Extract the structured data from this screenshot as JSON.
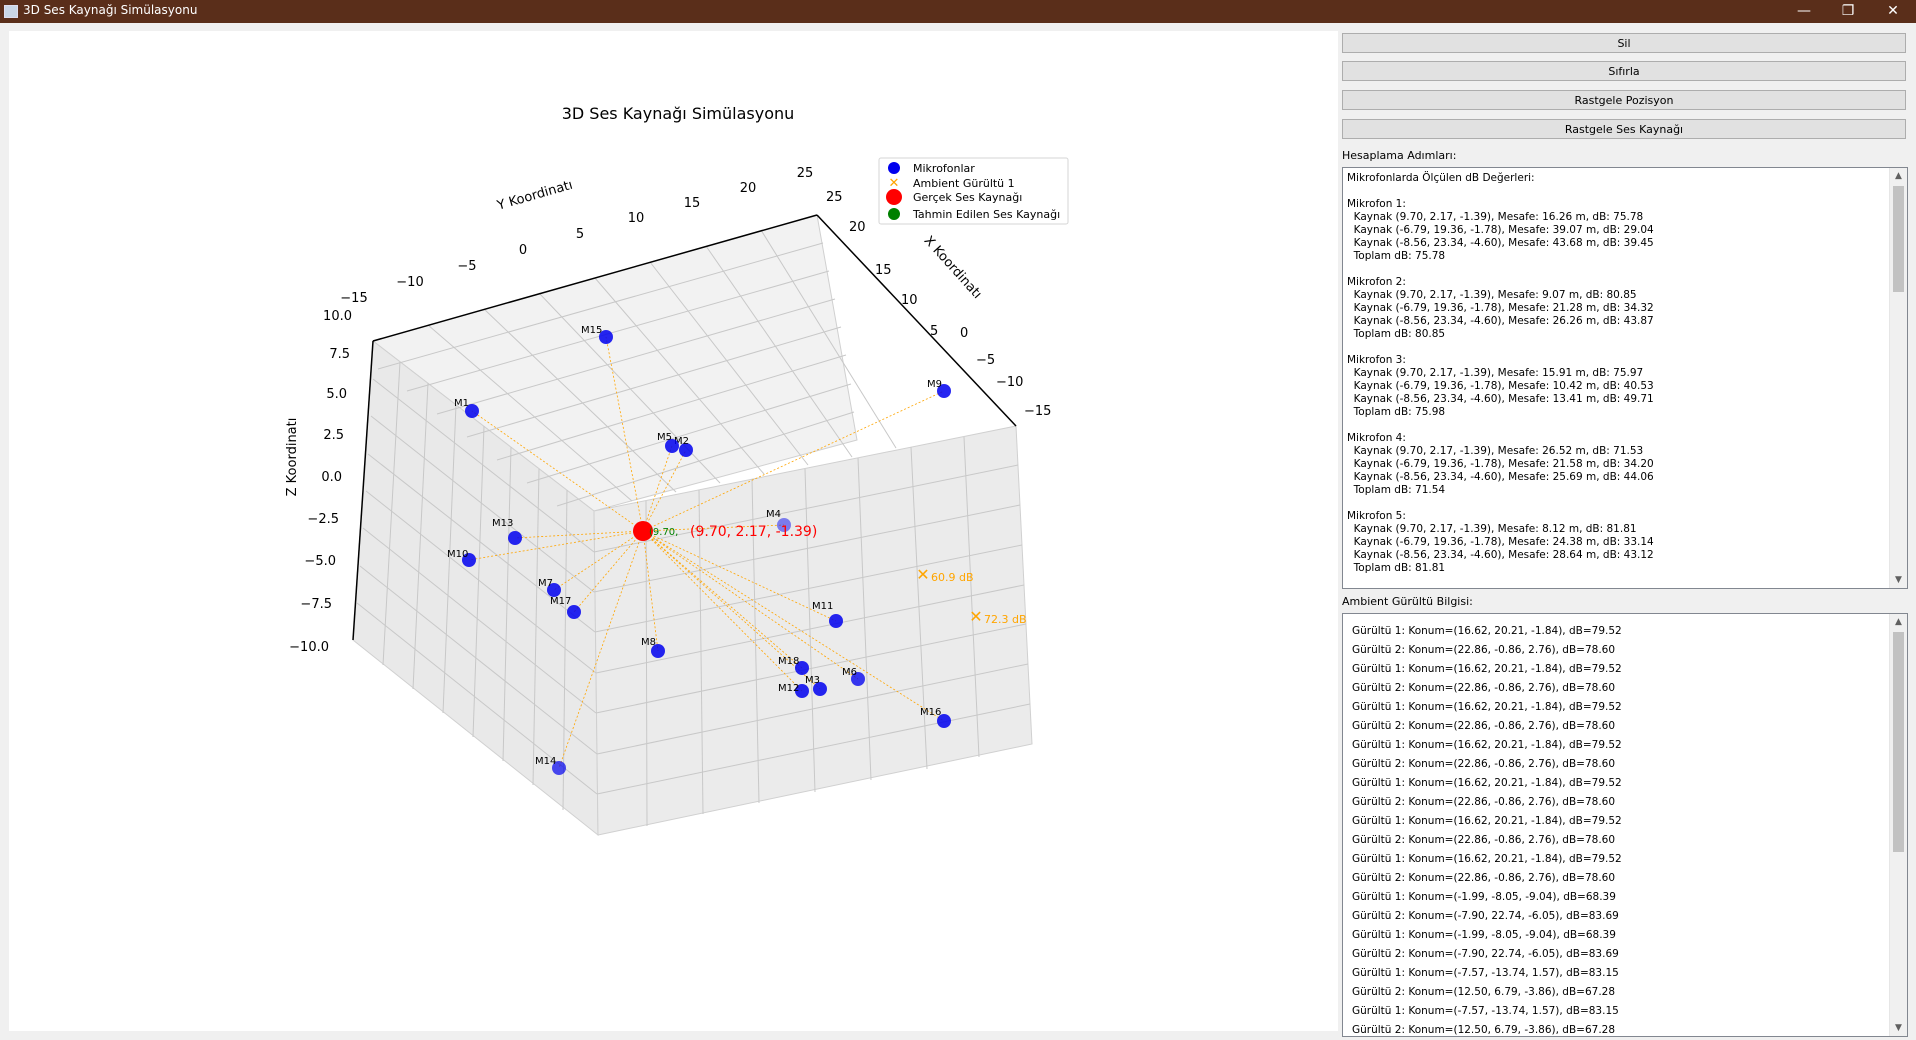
{
  "window": {
    "title": "3D Ses Kaynağı Simülasyonu",
    "controls": [
      "—",
      "❐",
      "✕"
    ]
  },
  "buttons": {
    "sil": "Sil",
    "sifirla": "Sıfırla",
    "rastgele_pozisyon": "Rastgele Pozisyon",
    "rastgele_ses": "Rastgele Ses Kaynağı"
  },
  "labels": {
    "hesaplama": "Hesaplama Adımları:",
    "ambient": "Ambient Gürültü Bilgisi:"
  },
  "calc_text": "Mikrofonlarda Ölçülen dB Değerleri:\n\nMikrofon 1:\n  Kaynak (9.70, 2.17, -1.39), Mesafe: 16.26 m, dB: 75.78\n  Kaynak (-6.79, 19.36, -1.78), Mesafe: 39.07 m, dB: 29.04\n  Kaynak (-8.56, 23.34, -4.60), Mesafe: 43.68 m, dB: 39.45\n  Toplam dB: 75.78\n\nMikrofon 2:\n  Kaynak (9.70, 2.17, -1.39), Mesafe: 9.07 m, dB: 80.85\n  Kaynak (-6.79, 19.36, -1.78), Mesafe: 21.28 m, dB: 34.32\n  Kaynak (-8.56, 23.34, -4.60), Mesafe: 26.26 m, dB: 43.87\n  Toplam dB: 80.85\n\nMikrofon 3:\n  Kaynak (9.70, 2.17, -1.39), Mesafe: 15.91 m, dB: 75.97\n  Kaynak (-6.79, 19.36, -1.78), Mesafe: 10.42 m, dB: 40.53\n  Kaynak (-8.56, 23.34, -4.60), Mesafe: 13.41 m, dB: 49.71\n  Toplam dB: 75.98\n\nMikrofon 4:\n  Kaynak (9.70, 2.17, -1.39), Mesafe: 26.52 m, dB: 71.53\n  Kaynak (-6.79, 19.36, -1.78), Mesafe: 21.58 m, dB: 34.20\n  Kaynak (-8.56, 23.34, -4.60), Mesafe: 25.69 m, dB: 44.06\n  Toplam dB: 71.54\n\nMikrofon 5:\n  Kaynak (9.70, 2.17, -1.39), Mesafe: 8.12 m, dB: 81.81\n  Kaynak (-6.79, 19.36, -1.78), Mesafe: 24.38 m, dB: 33.14\n  Kaynak (-8.56, 23.34, -4.60), Mesafe: 28.64 m, dB: 43.12\n  Toplam dB: 81.81",
  "noise_lines": [
    "Gürültü 1: Konum=(16.62, 20.21, -1.84), dB=79.52",
    "Gürültü 2: Konum=(22.86, -0.86, 2.76), dB=78.60",
    "Gürültü 1: Konum=(16.62, 20.21, -1.84), dB=79.52",
    "Gürültü 2: Konum=(22.86, -0.86, 2.76), dB=78.60",
    "Gürültü 1: Konum=(16.62, 20.21, -1.84), dB=79.52",
    "Gürültü 2: Konum=(22.86, -0.86, 2.76), dB=78.60",
    "Gürültü 1: Konum=(16.62, 20.21, -1.84), dB=79.52",
    "Gürültü 2: Konum=(22.86, -0.86, 2.76), dB=78.60",
    "Gürültü 1: Konum=(16.62, 20.21, -1.84), dB=79.52",
    "Gürültü 2: Konum=(22.86, -0.86, 2.76), dB=78.60",
    "Gürültü 1: Konum=(16.62, 20.21, -1.84), dB=79.52",
    "Gürültü 2: Konum=(22.86, -0.86, 2.76), dB=78.60",
    "Gürültü 1: Konum=(16.62, 20.21, -1.84), dB=79.52",
    "Gürültü 2: Konum=(22.86, -0.86, 2.76), dB=78.60",
    "Gürültü 1: Konum=(-1.99, -8.05, -9.04), dB=68.39",
    "Gürültü 2: Konum=(-7.90, 22.74, -6.05), dB=83.69",
    "Gürültü 1: Konum=(-1.99, -8.05, -9.04), dB=68.39",
    "Gürültü 2: Konum=(-7.90, 22.74, -6.05), dB=83.69",
    "Gürültü 1: Konum=(-7.57, -13.74, 1.57), dB=83.15",
    "Gürültü 2: Konum=(12.50, 6.79, -3.86), dB=67.28",
    "Gürültü 1: Konum=(-7.57, -13.74, 1.57), dB=83.15",
    "Gürültü 2: Konum=(12.50, 6.79, -3.86), dB=67.28"
  ],
  "chart_data": {
    "type": "scatter",
    "title": "3D Ses Kaynağı Simülasyonu",
    "xlabel": "X Koordinatı",
    "ylabel": "Y Koordinatı",
    "zlabel": "Z Koordinatı",
    "x_ticks": [
      "25",
      "20",
      "15",
      "10",
      "5",
      "0",
      "−5",
      "−10",
      "−15"
    ],
    "y_ticks": [
      "−15",
      "−10",
      "−5",
      "0",
      "5",
      "10",
      "15",
      "20",
      "25"
    ],
    "z_ticks": [
      "10.0",
      "7.5",
      "5.0",
      "2.5",
      "0.0",
      "−2.5",
      "−5.0",
      "−7.5",
      "−10.0"
    ],
    "xlim": [
      -15,
      25
    ],
    "ylim": [
      -15,
      25
    ],
    "zlim": [
      -10,
      10
    ],
    "legend": [
      "Mikrofonlar",
      "Ambient Gürültü 1",
      "Gerçek Ses Kaynağı",
      "Tahmin Edilen Ses Kaynağı"
    ],
    "legend_placement": "top-right",
    "colors": {
      "mic": "#0000ee",
      "noise": "#ffa500",
      "real": "#ff0000",
      "estimated": "#008000",
      "line": "#ffa500"
    },
    "real_source": {
      "label": "(9.70, 2.17, -1.39)",
      "position": [
        9.7,
        2.17,
        -1.39
      ]
    },
    "estimated_label": "(9.70,",
    "microphones": [
      "M1",
      "M2",
      "M3",
      "M4",
      "M5",
      "M6",
      "M7",
      "M8",
      "M9",
      "M10",
      "M11",
      "M12",
      "M13",
      "M14",
      "M15",
      "M16",
      "M17",
      "M18"
    ],
    "noise_labels": [
      "60.9 dB",
      "72.3 dB"
    ]
  }
}
